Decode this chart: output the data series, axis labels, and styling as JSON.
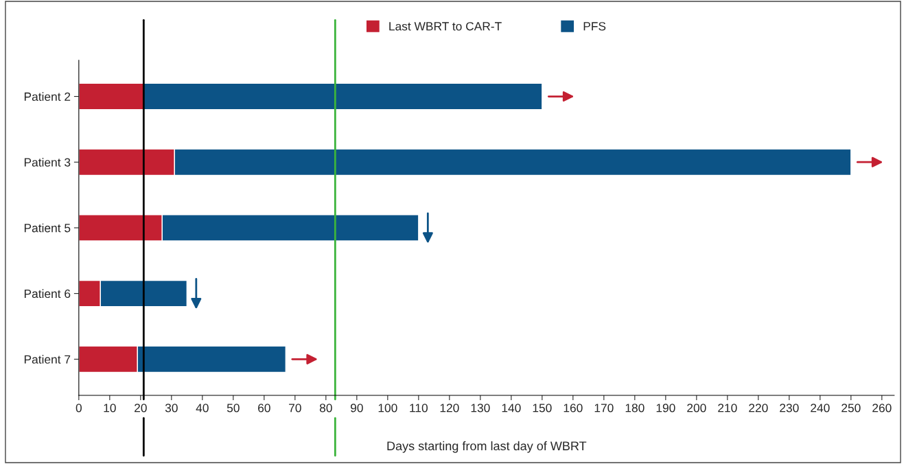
{
  "chart_data": {
    "type": "bar",
    "orientation": "horizontal",
    "stacked": true,
    "categories": [
      "Patient 2",
      "Patient 3",
      "Patient 5",
      "Patient 6",
      "Patient 7"
    ],
    "series": [
      {
        "name": "Last WBRT to CAR-T",
        "color": "#c42032",
        "values": [
          21,
          31,
          27,
          7,
          19
        ]
      },
      {
        "name": "PFS",
        "color": "#0c5386",
        "values": [
          129,
          219,
          83,
          28,
          48
        ]
      }
    ],
    "xlabel": "Days starting from last day of WBRT",
    "xlim": [
      0,
      264
    ],
    "xticks": [
      0,
      10,
      20,
      30,
      40,
      50,
      60,
      70,
      80,
      90,
      100,
      110,
      120,
      130,
      140,
      150,
      160,
      170,
      180,
      190,
      200,
      210,
      220,
      230,
      240,
      250,
      260
    ],
    "ref_lines": [
      {
        "axis": "x",
        "value": 21,
        "color": "#000000"
      },
      {
        "axis": "x",
        "value": 83,
        "color": "#3cb43c"
      }
    ],
    "legend": "top",
    "grid": false
  }
}
